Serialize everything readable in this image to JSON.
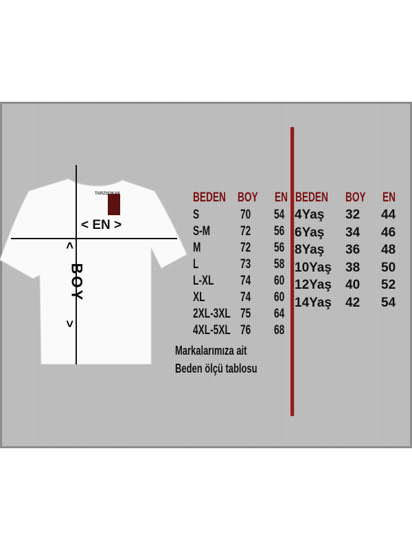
{
  "shirt": {
    "brand_tag": "TARZSOKAK",
    "en_label": "< EN >",
    "boy_label": "BOY",
    "arrow_up": "<",
    "arrow_down": ">"
  },
  "adult_table": {
    "headers": [
      "BEDEN",
      "BOY",
      "EN"
    ],
    "rows": [
      [
        "S",
        "70",
        "54"
      ],
      [
        "S-M",
        "72",
        "56"
      ],
      [
        "M",
        "72",
        "56"
      ],
      [
        "L",
        "73",
        "58"
      ],
      [
        "L-XL",
        "74",
        "60"
      ],
      [
        "XL",
        "74",
        "60"
      ],
      [
        "2XL-3XL",
        "75",
        "64"
      ],
      [
        "4XL-5XL",
        "76",
        "68"
      ]
    ]
  },
  "kids_table": {
    "headers": [
      "BEDEN",
      "BOY",
      "EN"
    ],
    "rows": [
      [
        "4Yaş",
        "32",
        "44"
      ],
      [
        "6Yaş",
        "34",
        "46"
      ],
      [
        "8Yaş",
        "36",
        "48"
      ],
      [
        "10Yaş",
        "38",
        "50"
      ],
      [
        "12Yaş",
        "40",
        "52"
      ],
      [
        "14Yaş",
        "42",
        "54"
      ]
    ]
  },
  "note": {
    "line1": "Markalarımıza ait",
    "line2": "Beden ölçü tablosu"
  },
  "colors": {
    "header": "#7a1010",
    "divider": "#a31515",
    "panel": "#bdbdbd"
  }
}
